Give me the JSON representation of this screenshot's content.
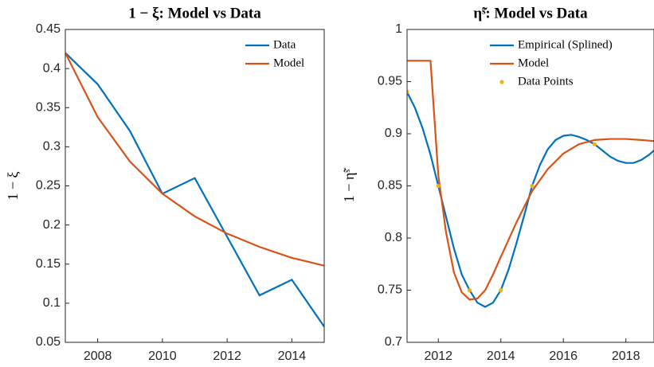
{
  "chart_data": [
    {
      "type": "line",
      "title": "1 − ξ: Model vs Data",
      "ylabel": "1 − ξ",
      "xlim": [
        2007,
        2015
      ],
      "xticks": [
        2008,
        2010,
        2012,
        2014
      ],
      "ylim": [
        0.05,
        0.45
      ],
      "yticks": [
        0.05,
        0.1,
        0.15,
        0.2,
        0.25,
        0.3,
        0.35,
        0.4,
        0.45
      ],
      "legend": "upper right",
      "series": [
        {
          "name": "Data",
          "color": "#0072BD",
          "x": [
            2007,
            2008,
            2009,
            2010,
            2011,
            2012,
            2013,
            2014,
            2015
          ],
          "values": [
            0.42,
            0.38,
            0.32,
            0.24,
            0.26,
            0.185,
            0.11,
            0.13,
            0.07
          ]
        },
        {
          "name": "Model",
          "color": "#D95319",
          "x": [
            2007,
            2008,
            2009,
            2010,
            2011,
            2012,
            2013,
            2014,
            2015
          ],
          "values": [
            0.42,
            0.338,
            0.281,
            0.24,
            0.211,
            0.189,
            0.172,
            0.158,
            0.148
          ]
        }
      ]
    },
    {
      "type": "line",
      "title": "η̃ˢ: Model vs Data",
      "ylabel": "1 − η̃ˢ",
      "xlim": [
        2011,
        2018.9
      ],
      "xticks": [
        2012,
        2014,
        2016,
        2018
      ],
      "ylim": [
        0.7,
        1
      ],
      "yticks": [
        0.7,
        0.75,
        0.8,
        0.85,
        0.9,
        0.95,
        1
      ],
      "legend": "upper right",
      "series": [
        {
          "name": "Empirical (Splined)",
          "color": "#0072BD",
          "x": [
            2011,
            2011.25,
            2011.5,
            2011.75,
            2012,
            2012.25,
            2012.5,
            2012.75,
            2013,
            2013.25,
            2013.5,
            2013.75,
            2014,
            2014.25,
            2014.5,
            2014.75,
            2015,
            2015.25,
            2015.5,
            2015.75,
            2016,
            2016.25,
            2016.5,
            2016.75,
            2017,
            2017.25,
            2017.5,
            2017.75,
            2018,
            2018.25,
            2018.5,
            2018.75,
            2018.9
          ],
          "values": [
            0.94,
            0.925,
            0.905,
            0.88,
            0.85,
            0.82,
            0.79,
            0.765,
            0.75,
            0.738,
            0.734,
            0.738,
            0.75,
            0.77,
            0.795,
            0.822,
            0.85,
            0.87,
            0.885,
            0.894,
            0.898,
            0.899,
            0.897,
            0.894,
            0.89,
            0.884,
            0.878,
            0.874,
            0.872,
            0.872,
            0.875,
            0.88,
            0.884
          ]
        },
        {
          "name": "Model",
          "color": "#D95319",
          "x": [
            2011,
            2011.75,
            2012,
            2012.25,
            2012.5,
            2012.75,
            2013,
            2013.25,
            2013.5,
            2013.75,
            2014,
            2014.5,
            2015,
            2015.5,
            2016,
            2016.5,
            2017,
            2017.5,
            2018,
            2018.5,
            2018.9
          ],
          "values": [
            0.97,
            0.97,
            0.86,
            0.805,
            0.767,
            0.748,
            0.741,
            0.742,
            0.75,
            0.765,
            0.782,
            0.815,
            0.845,
            0.866,
            0.881,
            0.89,
            0.894,
            0.895,
            0.895,
            0.894,
            0.893
          ]
        },
        {
          "name": "Data Points",
          "color": "#EDB120",
          "style": "markers",
          "x": [
            2011,
            2012,
            2013,
            2014,
            2015,
            2017
          ],
          "values": [
            0.94,
            0.85,
            0.75,
            0.75,
            0.85,
            0.89
          ]
        }
      ]
    }
  ]
}
